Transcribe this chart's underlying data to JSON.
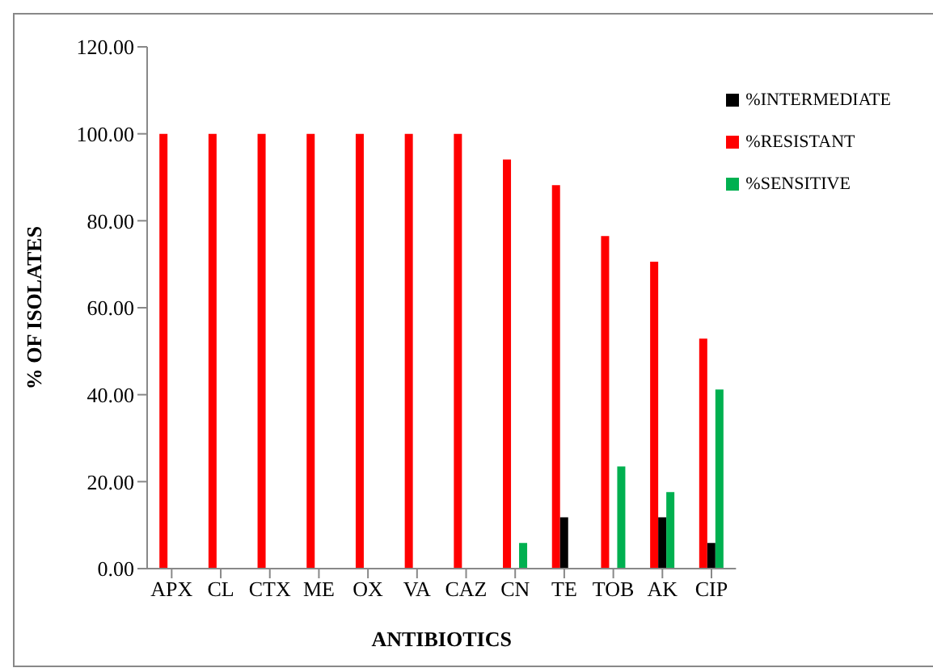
{
  "chart_data": {
    "type": "bar",
    "xlabel": "ANTIBIOTICS",
    "ylabel": "% OF ISOLATES",
    "categories": [
      "APX",
      "CL",
      "CTX",
      "ME",
      "OX",
      "VA",
      "CAZ",
      "CN",
      "TE",
      "TOB",
      "AK",
      "CIP"
    ],
    "series": [
      {
        "name": "%RESISTANT",
        "color": "#ff0000",
        "values": [
          100,
          100,
          100,
          100,
          100,
          100,
          100,
          94.1,
          88.2,
          76.5,
          70.6,
          52.9
        ]
      },
      {
        "name": "%INTERMEDIATE",
        "color": "#000000",
        "values": [
          0,
          0,
          0,
          0,
          0,
          0,
          0,
          0,
          11.8,
          0,
          11.8,
          5.9
        ]
      },
      {
        "name": "%SENSITIVE",
        "color": "#00b050",
        "values": [
          0,
          0,
          0,
          0,
          0,
          0,
          0,
          5.9,
          0,
          23.5,
          17.6,
          41.2
        ]
      }
    ],
    "ylim": [
      0,
      120
    ],
    "yticks": [
      {
        "value": 0,
        "label": "0.00"
      },
      {
        "value": 20,
        "label": "20.00"
      },
      {
        "value": 40,
        "label": "40.00"
      },
      {
        "value": 60,
        "label": "60.00"
      },
      {
        "value": 80,
        "label": "80.00"
      },
      {
        "value": 100,
        "label": "100.00"
      },
      {
        "value": 120,
        "label": "120.00"
      }
    ],
    "grid": false,
    "legend": "top right"
  }
}
